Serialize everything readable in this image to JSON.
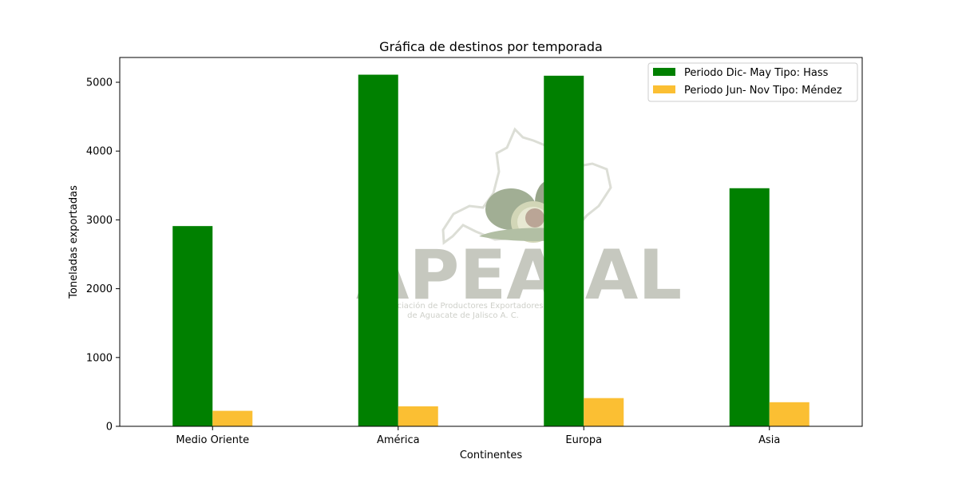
{
  "chart_data": {
    "type": "bar",
    "title": "Gráfica de destinos por temporada",
    "xlabel": "Continentes",
    "ylabel": "Toneladas exportadas",
    "categories": [
      "Medio Oriente",
      "América",
      "Europa",
      "Asia"
    ],
    "series": [
      {
        "name": "Periodo Dic- May Tipo: Hass",
        "color": "#008000",
        "values": [
          2910,
          5110,
          5095,
          3460
        ]
      },
      {
        "name": "Periodo Jun- Nov Tipo: Méndez",
        "color": "#fbbf33",
        "values": [
          225,
          290,
          410,
          350
        ]
      }
    ],
    "ylim": [
      0,
      5360
    ],
    "yticks": [
      0,
      1000,
      2000,
      3000,
      4000,
      5000
    ],
    "grid": false,
    "legend_position": "top-right"
  },
  "watermark": {
    "brand": "APEAJAL",
    "line1": "Asociación de Productores Exportadores",
    "line2": "de Aguacate de Jalisco A. C."
  }
}
